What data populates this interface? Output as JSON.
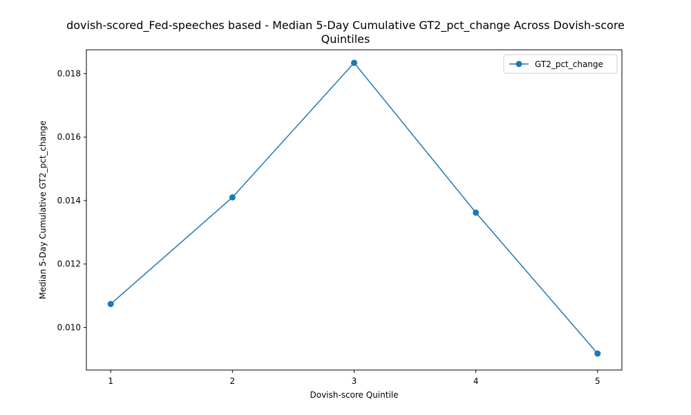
{
  "chart_data": {
    "type": "line",
    "title_line1": "dovish-scored_Fed-speeches based - Median 5-Day Cumulative GT2_pct_change Across Dovish-score",
    "title_line2": "Quintiles",
    "xlabel": "Dovish-score Quintile",
    "ylabel": "Median 5-Day Cumulative GT2_pct_change",
    "x": [
      1,
      2,
      3,
      4,
      5
    ],
    "x_tick_labels": [
      "1",
      "2",
      "3",
      "4",
      "5"
    ],
    "xlim": [
      0.8,
      5.2
    ],
    "ylim": [
      0.00866,
      0.01875
    ],
    "y_ticks": [
      0.01,
      0.012,
      0.014,
      0.016,
      0.018
    ],
    "y_tick_labels": [
      "0.010",
      "0.012",
      "0.014",
      "0.016",
      "0.018"
    ],
    "series": [
      {
        "name": "GT2_pct_change",
        "values": [
          0.01074,
          0.0141,
          0.01834,
          0.01362,
          0.00918
        ],
        "color": "#1f77b4"
      }
    ],
    "legend_position": "upper right",
    "grid": false
  }
}
